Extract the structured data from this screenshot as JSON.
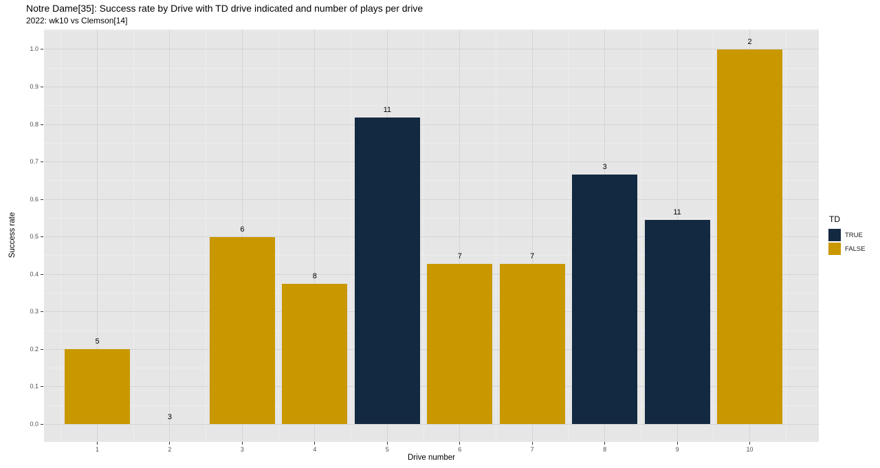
{
  "chart_data": {
    "type": "bar",
    "title": "Notre Dame[35]: Success rate by Drive with TD drive indicated and number of plays per drive",
    "subtitle": "2022: wk10 vs Clemson[14]",
    "xlabel": "Drive number",
    "ylabel": "Success rate",
    "categories": [
      "1",
      "2",
      "3",
      "4",
      "5",
      "6",
      "7",
      "8",
      "9",
      "10"
    ],
    "values": [
      0.2,
      0.0,
      0.5,
      0.375,
      0.8182,
      0.4286,
      0.4286,
      0.6667,
      0.5455,
      1.0
    ],
    "plays_per_drive_labels": [
      "5",
      "3",
      "6",
      "8",
      "11",
      "7",
      "7",
      "3",
      "11",
      "2"
    ],
    "td": [
      false,
      false,
      false,
      false,
      true,
      false,
      false,
      true,
      true,
      false
    ],
    "ylim": [
      0.0,
      1.0
    ],
    "y_ticks": [
      "0.0",
      "0.1",
      "0.2",
      "0.3",
      "0.4",
      "0.5",
      "0.6",
      "0.7",
      "0.8",
      "0.9",
      "1.0"
    ],
    "grid": true,
    "legend": {
      "title": "TD",
      "position": "right",
      "entries": [
        {
          "label": "TRUE",
          "value": true
        },
        {
          "label": "FALSE",
          "value": false
        }
      ]
    },
    "colors": {
      "td_true": "#132841",
      "td_false": "#c99700",
      "panel_bg": "#e6e6e6",
      "grid_major": "#d4d4d4",
      "grid_minor": "#eeeef1",
      "tick_mark": "#333333",
      "tick_text": "#4d4d4d",
      "text": "#000000"
    }
  }
}
